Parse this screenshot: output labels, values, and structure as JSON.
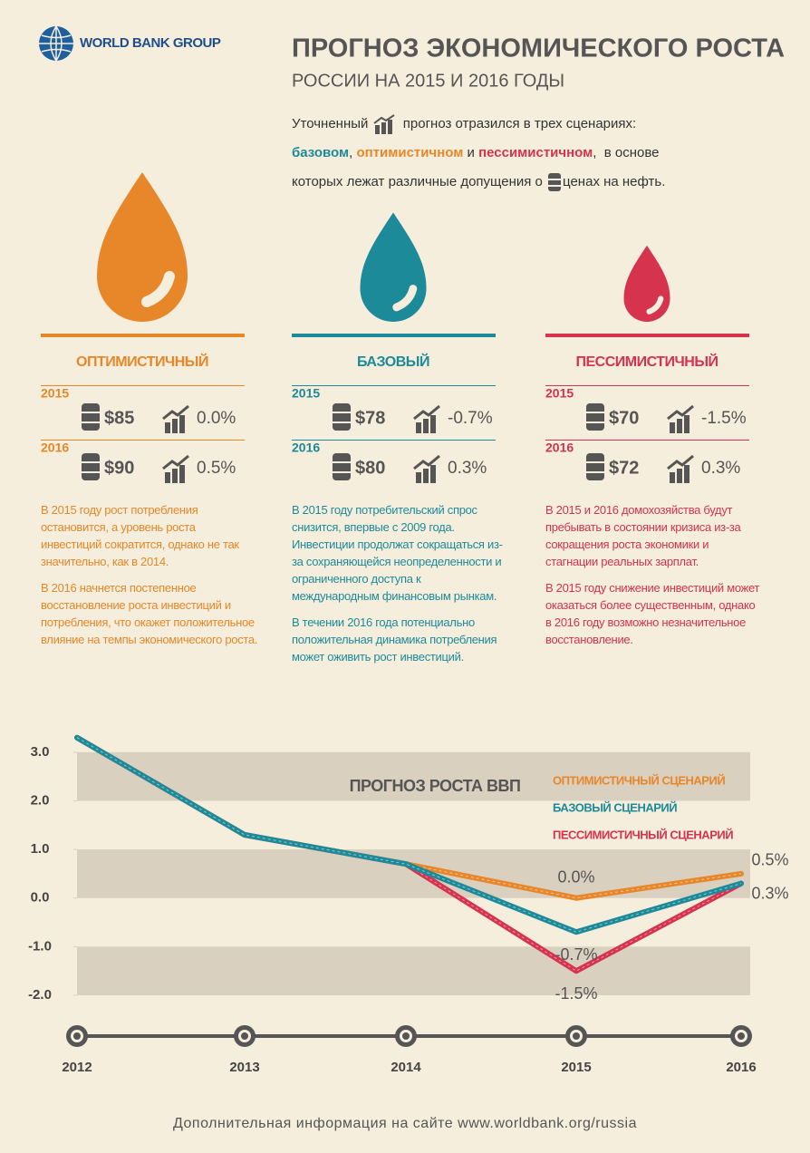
{
  "header": {
    "logo": "WORLD BANK GROUP",
    "title": "ПРОГНОЗ ЭКОНОМИЧЕСКОГО РОСТА",
    "subtitle": "РОССИИ НА 2015 И 2016 ГОДЫ",
    "intro": {
      "part1": "Уточненный",
      "part2": "прогноз отразился в трех сценариях:",
      "base": "базовом",
      "sep1": ",",
      "optimistic": "оптимистичном",
      "and": "и",
      "pessimistic": "пессимистичном",
      "sep2": ",",
      "part3": "в основе",
      "part4": "которых лежат различные допущения о",
      "part5": "ценах на нефть."
    }
  },
  "scenarios": [
    {
      "name": "ОПТИМИСТИЧНЫЙ",
      "color": "#e8872a",
      "rows": [
        {
          "year": "2015",
          "price": "$85",
          "growth": "0.0%"
        },
        {
          "year": "2016",
          "price": "$90",
          "growth": "0.5%"
        }
      ],
      "paragraphs": [
        "В 2015 году рост потребления остановится, а уровень роста инвестиций сократится, однако не так значительно, как в 2014.",
        "В 2016 начнется постепенное восстановление роста инвестиций и потребления, что окажет положительное влияние на темпы экономического роста."
      ]
    },
    {
      "name": "БАЗОВЫЙ",
      "color": "#1d8a9a",
      "rows": [
        {
          "year": "2015",
          "price": "$78",
          "growth": "-0.7%"
        },
        {
          "year": "2016",
          "price": "$80",
          "growth": "0.3%"
        }
      ],
      "paragraphs": [
        "В 2015 году потребительский спрос снизится, впервые с 2009 года. Инвестиции продолжат сокращаться из-за сохраняющейся неопределенности и ограниченного доступа к международным финансовым рынкам.",
        "В течении 2016 года потенциально положительная динамика потребления может оживить рост инвестиций."
      ]
    },
    {
      "name": "ПЕССИМИСТИЧНЫЙ",
      "color": "#d6334f",
      "rows": [
        {
          "year": "2015",
          "price": "$70",
          "growth": "-1.5%"
        },
        {
          "year": "2016",
          "price": "$72",
          "growth": "0.3%"
        }
      ],
      "paragraphs": [
        "В 2015 и 2016 домохозяйства будут пребывать в состоянии кризиса из-за сокращения роста экономики и стагнации реальных зарплат.",
        "В 2015 году снижение инвестиций может оказаться более существенным, однако в 2016 году возможно незначительное восстановление."
      ]
    }
  ],
  "chart_data": {
    "type": "line",
    "title": "ПРОГНОЗ РОСТА ВВП",
    "categories": [
      "2012",
      "2013",
      "2014",
      "2015",
      "2016"
    ],
    "series": [
      {
        "name": "ОПТИМИСТИЧНЫЙ СЦЕНАРИЙ",
        "color": "#e8872a",
        "values": [
          3.3,
          1.3,
          0.7,
          0.0,
          0.5
        ],
        "value_labels": [
          null,
          null,
          null,
          "0.0%",
          "0.5%"
        ]
      },
      {
        "name": "БАЗОВЫЙ СЦЕНАРИЙ",
        "color": "#1d8a9a",
        "values": [
          3.3,
          1.3,
          0.7,
          -0.7,
          0.3
        ],
        "value_labels": [
          null,
          null,
          null,
          "-0.7%",
          "0.3%"
        ]
      },
      {
        "name": "ПЕССИМИСТИЧНЫЙ СЦЕНАРИЙ",
        "color": "#d6334f",
        "values": [
          3.3,
          1.3,
          0.7,
          -1.5,
          0.3
        ],
        "value_labels": [
          null,
          null,
          null,
          "-1.5%",
          null
        ]
      }
    ],
    "ylim": [
      -2,
      3.5
    ],
    "yticks": [
      {
        "value": 3,
        "label": "3.0"
      },
      {
        "value": 2,
        "label": "2.0"
      },
      {
        "value": 1,
        "label": "1.0"
      },
      {
        "value": 0,
        "label": "0.0"
      },
      {
        "value": -1,
        "label": "-1.0"
      },
      {
        "value": -2,
        "label": "-2.0"
      }
    ],
    "grid": true
  },
  "footer": "Дополнительная информация на сайте www.worldbank.org/russia"
}
